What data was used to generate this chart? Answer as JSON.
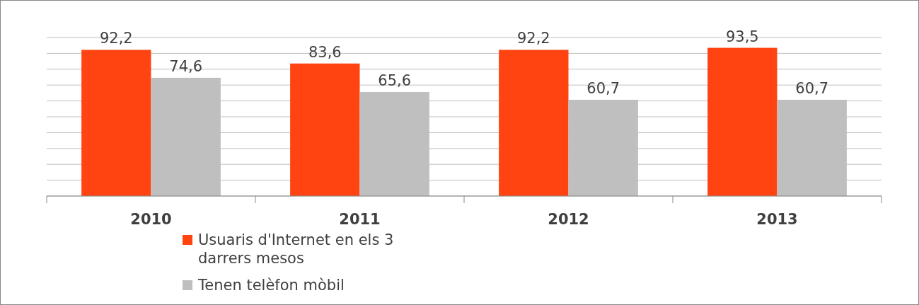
{
  "chart_data": {
    "type": "bar",
    "categories": [
      "2010",
      "2011",
      "2012",
      "2013"
    ],
    "series": [
      {
        "name": "Usuaris d'Internet en els 3 darrers mesos",
        "color": "#ff4411",
        "values": [
          92.2,
          83.6,
          92.2,
          93.5
        ],
        "value_labels": [
          "92,2",
          "83,6",
          "92,2",
          "93,5"
        ]
      },
      {
        "name": "Tenen telèfon mòbil",
        "color": "#bfbfbf",
        "values": [
          74.6,
          65.6,
          60.7,
          60.7
        ],
        "value_labels": [
          "74,6",
          "65,6",
          "60,7",
          "60,7"
        ]
      }
    ],
    "tick_labels": "x",
    "grid": true,
    "legend": "bottom"
  }
}
